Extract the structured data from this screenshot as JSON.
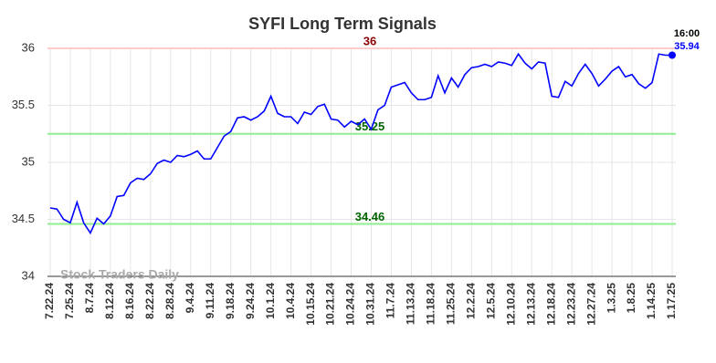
{
  "chart_data": {
    "type": "line",
    "title": "SYFI Long Term Signals",
    "categories": [
      "7.22.24",
      null,
      null,
      "7.25.24",
      null,
      null,
      "8.7.24",
      null,
      null,
      "8.12.24",
      null,
      null,
      "8.16.24",
      null,
      null,
      "8.22.24",
      null,
      null,
      "8.28.24",
      null,
      null,
      "9.4.24",
      null,
      null,
      "9.11.24",
      null,
      null,
      "9.18.24",
      null,
      null,
      "9.24.24",
      null,
      null,
      "10.1.24",
      null,
      null,
      "10.4.24",
      null,
      null,
      "10.15.24",
      null,
      null,
      "10.21.24",
      null,
      null,
      "10.24.24",
      null,
      null,
      "10.31.24",
      null,
      null,
      "11.7.24",
      null,
      null,
      "11.13.24",
      null,
      null,
      "11.18.24",
      null,
      null,
      "11.25.24",
      null,
      null,
      "12.2.24",
      null,
      null,
      "12.5.24",
      null,
      null,
      "12.10.24",
      null,
      null,
      "12.13.24",
      null,
      null,
      "12.18.24",
      null,
      null,
      "12.23.24",
      null,
      null,
      "12.27.24",
      null,
      null,
      "1.3.25",
      null,
      null,
      "1.8.25",
      null,
      null,
      "1.14.25",
      null,
      null,
      "1.17.25"
    ],
    "series": [
      {
        "color": "#0000ff",
        "values": [
          34.6,
          34.59,
          34.5,
          34.47,
          34.65,
          34.47,
          34.38,
          34.51,
          34.46,
          34.53,
          34.7,
          34.71,
          34.82,
          34.86,
          34.85,
          34.9,
          34.99,
          35.02,
          35.0,
          35.06,
          35.05,
          35.07,
          35.1,
          35.03,
          35.03,
          35.13,
          35.23,
          35.27,
          35.39,
          35.4,
          35.37,
          35.4,
          35.45,
          35.58,
          35.43,
          35.4,
          35.4,
          35.34,
          35.44,
          35.42,
          35.49,
          35.51,
          35.38,
          35.37,
          35.31,
          35.36,
          35.33,
          35.38,
          35.29,
          35.46,
          35.5,
          35.66,
          35.68,
          35.7,
          35.61,
          35.55,
          35.55,
          35.57,
          35.76,
          35.61,
          35.74,
          35.66,
          35.77,
          35.83,
          35.84,
          35.86,
          35.84,
          35.88,
          35.87,
          35.85,
          35.95,
          35.87,
          35.82,
          35.88,
          35.87,
          35.58,
          35.57,
          35.71,
          35.67,
          35.78,
          35.86,
          35.78,
          35.67,
          35.73,
          35.8,
          35.84,
          35.75,
          35.77,
          35.69,
          35.65,
          35.7,
          35.95,
          35.94,
          35.94
        ]
      }
    ],
    "hlines": [
      {
        "value": 36,
        "line_color": "#ffcccc",
        "label_color": "#8b0000"
      },
      {
        "value": 35.25,
        "line_color": "#90ee90",
        "label_color": "#006400"
      },
      {
        "value": 34.46,
        "line_color": "#90ee90",
        "label_color": "#006400"
      }
    ],
    "last_time": "16:00",
    "watermark": "Stock Traders Daily",
    "ylim": [
      34,
      36
    ],
    "yticks": [
      34,
      34.5,
      35,
      35.5,
      36
    ],
    "grid": true
  }
}
